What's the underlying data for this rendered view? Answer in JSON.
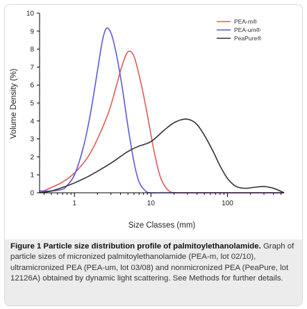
{
  "chart_data": {
    "type": "line",
    "xscale": "log",
    "xlabel": "Size Classes (mm)",
    "ylabel": "Volume Density (%)",
    "xlim": [
      0.35,
      550
    ],
    "ylim": [
      0,
      10
    ],
    "xticks": [
      1,
      10,
      100
    ],
    "xtick_labels": [
      "1",
      "10",
      "100"
    ],
    "yticks": [
      0,
      1,
      2,
      3,
      4,
      5,
      6,
      7,
      8,
      9,
      10
    ],
    "legend_position": "top-right",
    "series": [
      {
        "name": "PEA-m®",
        "color": "#e05a5a",
        "x": [
          0.35,
          0.5,
          0.7,
          1.0,
          1.5,
          2.0,
          2.8,
          3.5,
          4.2,
          5.0,
          6.0,
          7.5,
          9.0,
          11,
          13,
          15,
          18,
          22,
          30,
          100,
          550
        ],
        "y": [
          0.0,
          0.3,
          0.6,
          1.1,
          2.0,
          3.0,
          4.5,
          5.9,
          7.1,
          7.85,
          7.6,
          6.0,
          4.3,
          2.3,
          1.0,
          0.4,
          0.05,
          0.0,
          0.0,
          0.0,
          0.0
        ]
      },
      {
        "name": "PEA-um®",
        "color": "#5a5adc",
        "x": [
          0.35,
          0.5,
          0.7,
          0.8,
          1.0,
          1.3,
          1.6,
          2.0,
          2.3,
          2.6,
          3.0,
          3.5,
          4.2,
          5.0,
          6.0,
          7.0,
          8.5,
          10,
          15,
          100,
          550
        ],
        "y": [
          0.1,
          0.1,
          0.2,
          0.4,
          1.0,
          2.5,
          4.3,
          6.8,
          8.4,
          9.15,
          8.9,
          7.8,
          5.9,
          3.7,
          1.7,
          0.6,
          0.1,
          0.0,
          0.0,
          0.0,
          0.0
        ]
      },
      {
        "name": "PeaPure®",
        "color": "#333333",
        "x": [
          0.35,
          0.5,
          0.7,
          1.0,
          1.5,
          2.0,
          3.0,
          5.0,
          7.0,
          10,
          15,
          20,
          27,
          33,
          40,
          50,
          65,
          80,
          100,
          130,
          170,
          220,
          300,
          400,
          550
        ],
        "y": [
          0.0,
          0.1,
          0.3,
          0.55,
          0.9,
          1.2,
          1.65,
          2.3,
          2.6,
          2.85,
          3.5,
          3.9,
          4.1,
          4.05,
          3.8,
          3.2,
          2.3,
          1.5,
          0.8,
          0.35,
          0.25,
          0.3,
          0.35,
          0.25,
          0.0
        ]
      }
    ]
  },
  "caption": {
    "label": "Figure 1 Particle size distribution profile of palmitoylethanolamide.",
    "text": "Graph of particle sizes of micronized palmitoylethanolamide (PEA-m, lot 02/10), ultramicronized PEA (PEA-um, lot 03/08) and nonmicronized PEA (PeaPure, lot 12126A) obtained by dynamic light scattering. See Methods for further details."
  }
}
